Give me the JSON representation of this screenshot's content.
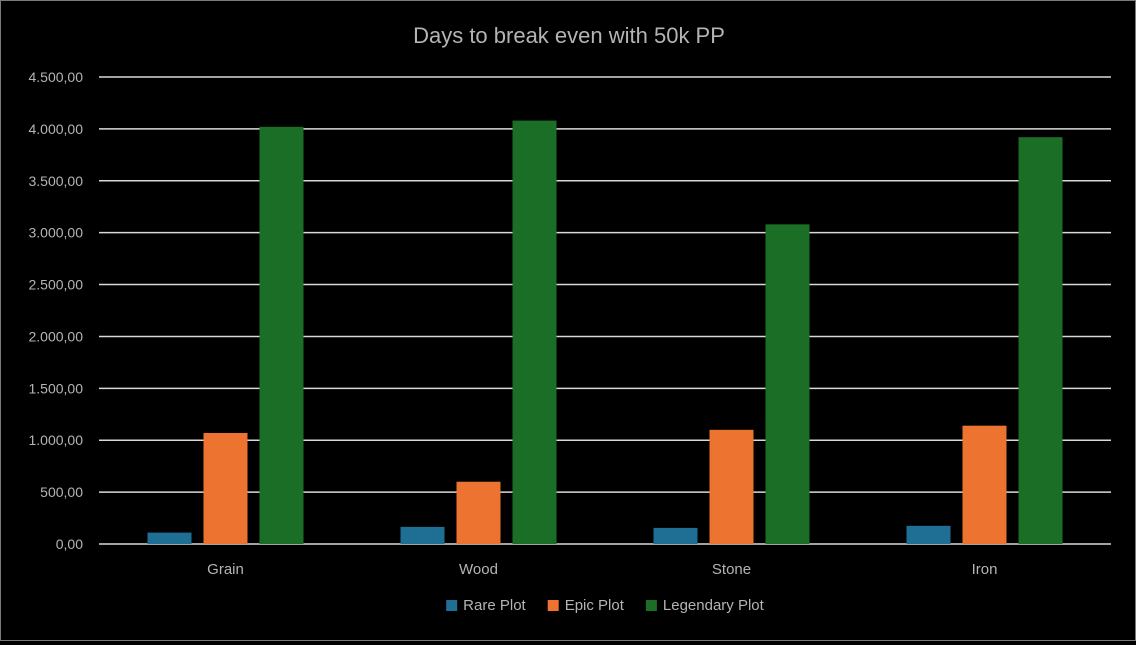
{
  "chart_data": {
    "type": "bar",
    "title": "Days to break even with 50k PP",
    "xlabel": "",
    "ylabel": "",
    "categories": [
      "Grain",
      "Wood",
      "Stone",
      "Iron"
    ],
    "series": [
      {
        "name": "Rare Plot",
        "color": "#1f6e94",
        "values": [
          110,
          165,
          155,
          175
        ]
      },
      {
        "name": "Epic Plot",
        "color": "#ed7430",
        "values": [
          1070,
          600,
          1100,
          1140
        ]
      },
      {
        "name": "Legendary Plot",
        "color": "#1b6e25",
        "values": [
          4020,
          4080,
          3080,
          3920
        ]
      }
    ],
    "ylim": [
      0,
      4500
    ],
    "yticks": [
      0,
      500,
      1000,
      1500,
      2000,
      2500,
      3000,
      3500,
      4000,
      4500
    ],
    "ytick_labels": [
      "0,00",
      "500,00",
      "1.000,00",
      "1.500,00",
      "2.000,00",
      "2.500,00",
      "3.000,00",
      "3.500,00",
      "4.000,00",
      "4.500,00"
    ],
    "grid": true,
    "legend_position": "bottom"
  }
}
